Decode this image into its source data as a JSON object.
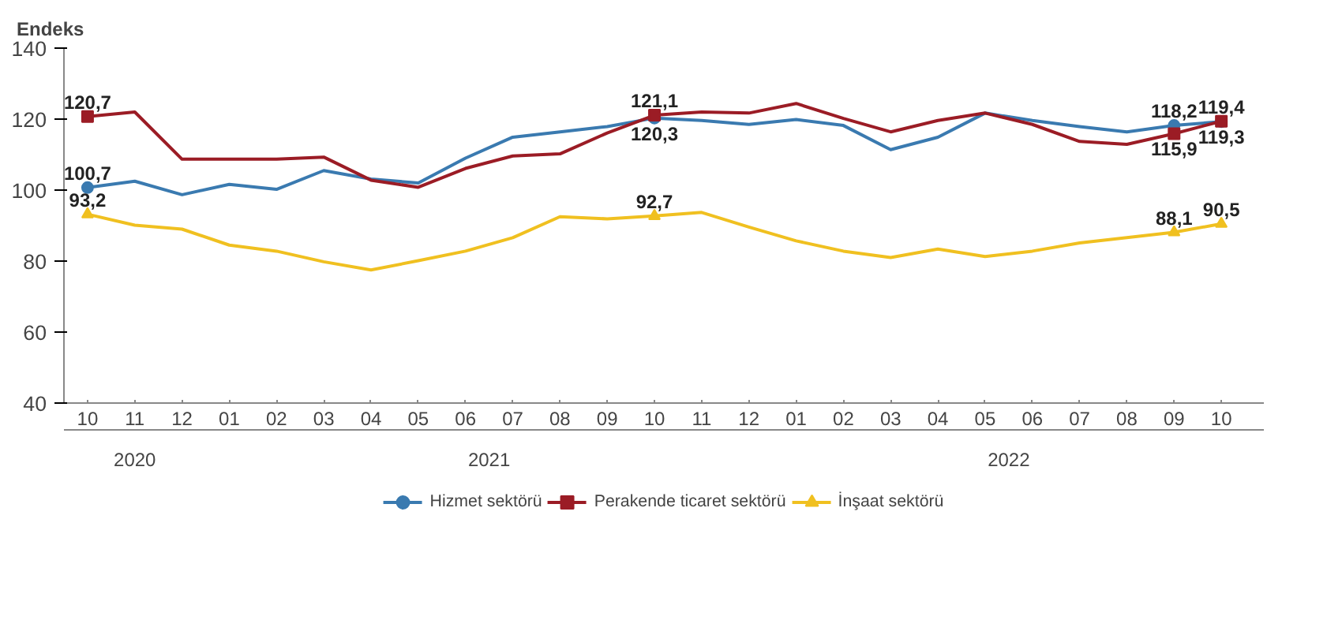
{
  "chart_data": {
    "type": "line",
    "ylabel": "Endeks",
    "categories": [
      "10",
      "11",
      "12",
      "01",
      "02",
      "03",
      "04",
      "05",
      "06",
      "07",
      "08",
      "09",
      "10",
      "11",
      "12",
      "01",
      "02",
      "03",
      "04",
      "05",
      "06",
      "07",
      "08",
      "09",
      "10"
    ],
    "annotations": [
      "2020",
      "2021",
      "2022"
    ],
    "ylim": [
      40,
      140
    ],
    "yticks": [
      40,
      60,
      80,
      100,
      120,
      140
    ],
    "grid": false,
    "legend": "bottom",
    "line_style": "solid",
    "series": [
      {
        "name": "Hizmet sektörü",
        "color": "#3a7ab0",
        "values": [
          100.7,
          102.5,
          98.7,
          101.6,
          100.2,
          105.5,
          103.1,
          102,
          109,
          114.9,
          116.4,
          117.9,
          120.3,
          119.6,
          118.5,
          119.9,
          118.2,
          111.4,
          114.9,
          121.7,
          119.6,
          117.9,
          116.4,
          118.2,
          119.3
        ],
        "value_labels": [
          "100,7",
          null,
          null,
          null,
          null,
          null,
          null,
          null,
          null,
          null,
          null,
          null,
          "120,3",
          null,
          null,
          null,
          null,
          null,
          null,
          null,
          null,
          null,
          null,
          "118,2",
          "119,3"
        ]
      },
      {
        "name": "Perakende ticaret sektörü",
        "color": "#9b1c25",
        "values": [
          120.7,
          122,
          108.7,
          108.7,
          108.7,
          109.3,
          102.8,
          100.8,
          106.1,
          109.6,
          110.2,
          116.1,
          121.1,
          122,
          121.7,
          124.4,
          120.2,
          116.4,
          119.6,
          121.7,
          118.5,
          113.7,
          112.9,
          115.9,
          119.4
        ],
        "value_labels": [
          "120,7",
          null,
          null,
          null,
          null,
          null,
          null,
          null,
          null,
          null,
          null,
          null,
          "121,1",
          null,
          null,
          null,
          null,
          null,
          null,
          null,
          null,
          null,
          null,
          "115,9",
          "119,4"
        ]
      },
      {
        "name": "İnşaat sektörü",
        "color": "#f0c020",
        "values": [
          93.2,
          90.1,
          89,
          84.5,
          82.8,
          79.8,
          77.5,
          80.1,
          82.8,
          86.6,
          92.5,
          91.9,
          92.7,
          93.7,
          89.6,
          85.7,
          82.8,
          81,
          83.4,
          81.3,
          82.8,
          85.1,
          86.6,
          88.1,
          90.5
        ],
        "value_labels": [
          "93,2",
          null,
          null,
          null,
          null,
          null,
          null,
          null,
          null,
          null,
          null,
          null,
          "92,7",
          null,
          null,
          null,
          null,
          null,
          null,
          null,
          null,
          null,
          null,
          "88,1",
          "90,5"
        ]
      }
    ]
  }
}
